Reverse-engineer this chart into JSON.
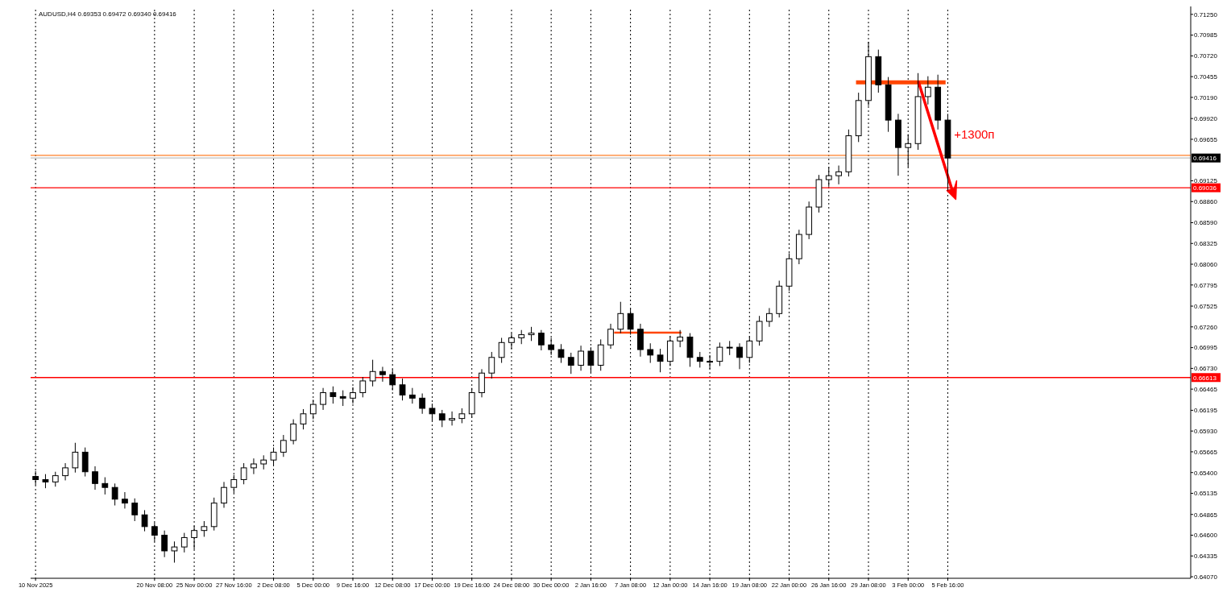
{
  "chart_data": {
    "type": "candlestick",
    "title": "AUDUSD,H4  0.69353 0.69472 0.69340 0.69416",
    "categories": [
      "10 Nov 2025",
      null,
      null,
      null,
      null,
      null,
      null,
      null,
      null,
      null,
      null,
      null,
      "20 Nov 08:00",
      null,
      null,
      null,
      "25 Nov 00:00",
      null,
      null,
      null,
      "27 Nov 16:00",
      null,
      null,
      null,
      "2 Dec 08:00",
      null,
      null,
      null,
      "5 Dec 00:00",
      null,
      null,
      null,
      "9 Dec 16:00",
      null,
      null,
      null,
      "12 Dec 08:00",
      null,
      null,
      null,
      "17 Dec 00:00",
      null,
      null,
      null,
      "19 Dec 16:00",
      null,
      null,
      null,
      "24 Dec 08:00",
      null,
      null,
      null,
      "30 Dec 00:00",
      null,
      null,
      null,
      "2 Jan 16:00",
      null,
      null,
      null,
      "7 Jan 08:00",
      null,
      null,
      null,
      "12 Jan 00:00",
      null,
      null,
      null,
      "14 Jan 16:00",
      null,
      null,
      null,
      "19 Jan 08:00",
      null,
      null,
      null,
      "22 Jan 00:00",
      null,
      null,
      null,
      "26 Jan 16:00",
      null,
      null,
      null,
      "29 Jan 08:00",
      null,
      null,
      null,
      "3 Feb 00:00",
      null,
      null,
      null,
      "5 Feb 16:00",
      null,
      null,
      null,
      null,
      null,
      null,
      null,
      null,
      null,
      null,
      null,
      null,
      null,
      null,
      null,
      null,
      null,
      null,
      null,
      null,
      null,
      null,
      null,
      null
    ],
    "ohlc": [
      [
        0.6535,
        0.6542,
        0.6524,
        0.6531
      ],
      [
        0.6531,
        0.6538,
        0.652,
        0.6528
      ],
      [
        0.6528,
        0.6541,
        0.6522,
        0.6536
      ],
      [
        0.6536,
        0.6552,
        0.653,
        0.6546
      ],
      [
        0.6546,
        0.6578,
        0.654,
        0.6566
      ],
      [
        0.6566,
        0.6572,
        0.6535,
        0.6541
      ],
      [
        0.6541,
        0.6548,
        0.6518,
        0.6526
      ],
      [
        0.6526,
        0.6534,
        0.6512,
        0.6521
      ],
      [
        0.6521,
        0.6526,
        0.6498,
        0.6506
      ],
      [
        0.6506,
        0.6515,
        0.6494,
        0.6501
      ],
      [
        0.6501,
        0.6507,
        0.6478,
        0.6486
      ],
      [
        0.6486,
        0.6492,
        0.6465,
        0.6471
      ],
      [
        0.6471,
        0.6476,
        0.6452,
        0.646
      ],
      [
        0.646,
        0.6466,
        0.6432,
        0.644
      ],
      [
        0.644,
        0.6452,
        0.6425,
        0.6445
      ],
      [
        0.6445,
        0.6463,
        0.6438,
        0.6457
      ],
      [
        0.6457,
        0.6472,
        0.6442,
        0.6466
      ],
      [
        0.6466,
        0.6478,
        0.6458,
        0.6471
      ],
      [
        0.6471,
        0.6508,
        0.6466,
        0.6501
      ],
      [
        0.6501,
        0.6528,
        0.6495,
        0.6521
      ],
      [
        0.6521,
        0.6537,
        0.6514,
        0.6531
      ],
      [
        0.6531,
        0.6552,
        0.6525,
        0.6546
      ],
      [
        0.6546,
        0.6558,
        0.6538,
        0.6551
      ],
      [
        0.6551,
        0.6562,
        0.6544,
        0.6556
      ],
      [
        0.6556,
        0.6572,
        0.6549,
        0.6566
      ],
      [
        0.6566,
        0.6588,
        0.656,
        0.6581
      ],
      [
        0.6581,
        0.6608,
        0.6576,
        0.6602
      ],
      [
        0.6602,
        0.6621,
        0.6595,
        0.6615
      ],
      [
        0.6615,
        0.6633,
        0.6608,
        0.6627
      ],
      [
        0.6627,
        0.6648,
        0.662,
        0.6642
      ],
      [
        0.6642,
        0.665,
        0.6628,
        0.6637
      ],
      [
        0.6637,
        0.6645,
        0.6625,
        0.6635
      ],
      [
        0.6635,
        0.6649,
        0.6628,
        0.6642
      ],
      [
        0.6642,
        0.6662,
        0.6636,
        0.6657
      ],
      [
        0.6657,
        0.6684,
        0.665,
        0.6669
      ],
      [
        0.6669,
        0.6675,
        0.6656,
        0.6665
      ],
      [
        0.6665,
        0.6672,
        0.6645,
        0.6652
      ],
      [
        0.6652,
        0.666,
        0.6632,
        0.6639
      ],
      [
        0.6639,
        0.6648,
        0.6628,
        0.6635
      ],
      [
        0.6635,
        0.6641,
        0.6615,
        0.6622
      ],
      [
        0.6622,
        0.6628,
        0.6606,
        0.6615
      ],
      [
        0.6615,
        0.662,
        0.6598,
        0.6607
      ],
      [
        0.6607,
        0.6618,
        0.66,
        0.6609
      ],
      [
        0.6609,
        0.6622,
        0.6603,
        0.6615
      ],
      [
        0.6615,
        0.6648,
        0.661,
        0.6642
      ],
      [
        0.6642,
        0.6672,
        0.6636,
        0.6667
      ],
      [
        0.6667,
        0.6694,
        0.666,
        0.6687
      ],
      [
        0.6687,
        0.6712,
        0.668,
        0.6706
      ],
      [
        0.6706,
        0.6718,
        0.6698,
        0.6712
      ],
      [
        0.6712,
        0.6722,
        0.6704,
        0.6716
      ],
      [
        0.6716,
        0.6726,
        0.6708,
        0.6718
      ],
      [
        0.6718,
        0.6722,
        0.6696,
        0.6703
      ],
      [
        0.6703,
        0.6712,
        0.669,
        0.6697
      ],
      [
        0.6697,
        0.6704,
        0.668,
        0.6687
      ],
      [
        0.6687,
        0.6693,
        0.6666,
        0.6677
      ],
      [
        0.6677,
        0.6702,
        0.667,
        0.6695
      ],
      [
        0.6695,
        0.67,
        0.6668,
        0.6677
      ],
      [
        0.6677,
        0.671,
        0.667,
        0.6703
      ],
      [
        0.6703,
        0.673,
        0.6698,
        0.6723
      ],
      [
        0.6723,
        0.6758,
        0.6718,
        0.6743
      ],
      [
        0.6743,
        0.675,
        0.6716,
        0.6723
      ],
      [
        0.6723,
        0.673,
        0.6688,
        0.6697
      ],
      [
        0.6697,
        0.6705,
        0.668,
        0.669
      ],
      [
        0.669,
        0.6698,
        0.6668,
        0.6682
      ],
      [
        0.6682,
        0.6714,
        0.6676,
        0.6708
      ],
      [
        0.6708,
        0.6722,
        0.67,
        0.6713
      ],
      [
        0.6713,
        0.6718,
        0.6675,
        0.6687
      ],
      [
        0.6687,
        0.6694,
        0.6674,
        0.6682
      ],
      [
        0.6682,
        0.669,
        0.6672,
        0.6682
      ],
      [
        0.6682,
        0.6706,
        0.6676,
        0.67
      ],
      [
        0.67,
        0.6708,
        0.669,
        0.67
      ],
      [
        0.67,
        0.6705,
        0.6672,
        0.6687
      ],
      [
        0.6687,
        0.6714,
        0.668,
        0.6708
      ],
      [
        0.6708,
        0.674,
        0.6702,
        0.6733
      ],
      [
        0.6733,
        0.675,
        0.6726,
        0.6743
      ],
      [
        0.6743,
        0.6785,
        0.6738,
        0.6778
      ],
      [
        0.6778,
        0.682,
        0.6772,
        0.6813
      ],
      [
        0.6813,
        0.685,
        0.6806,
        0.6844
      ],
      [
        0.6844,
        0.6886,
        0.6838,
        0.6879
      ],
      [
        0.6879,
        0.692,
        0.6872,
        0.6914
      ],
      [
        0.6914,
        0.693,
        0.6905,
        0.6919
      ],
      [
        0.6919,
        0.6932,
        0.6908,
        0.6924
      ],
      [
        0.6924,
        0.6978,
        0.6918,
        0.697
      ],
      [
        0.697,
        0.7025,
        0.6962,
        0.7015
      ],
      [
        0.7015,
        0.709,
        0.7008,
        0.7071
      ],
      [
        0.7071,
        0.708,
        0.7025,
        0.7035
      ],
      [
        0.7035,
        0.7045,
        0.6975,
        0.699
      ],
      [
        0.699,
        0.6998,
        0.6919,
        0.6955
      ],
      [
        0.6955,
        0.6972,
        0.693,
        0.696
      ],
      [
        0.696,
        0.705,
        0.6952,
        0.702
      ],
      [
        0.702,
        0.7046,
        0.701,
        0.7032
      ],
      [
        0.7032,
        0.7048,
        0.6978,
        0.699
      ],
      [
        0.699,
        0.6998,
        0.69,
        0.69416
      ],
      null,
      null,
      null,
      null,
      null,
      null,
      null,
      null,
      null,
      null,
      null,
      null,
      null,
      null,
      null,
      null,
      null,
      null,
      null,
      null,
      null,
      null,
      null,
      null
    ],
    "ylim": [
      0.6405,
      0.7131
    ],
    "yticks": [
      {
        "value": 0.6407,
        "label": "0.64070"
      },
      {
        "value": 0.64335,
        "label": "0.64335"
      },
      {
        "value": 0.646,
        "label": "0.64600"
      },
      {
        "value": 0.64865,
        "label": "0.64865"
      },
      {
        "value": 0.65135,
        "label": "0.65135"
      },
      {
        "value": 0.654,
        "label": "0.65400"
      },
      {
        "value": 0.65665,
        "label": "0.65665"
      },
      {
        "value": 0.6593,
        "label": "0.65930"
      },
      {
        "value": 0.66195,
        "label": "0.66195"
      },
      {
        "value": 0.66465,
        "label": "0.66465"
      },
      {
        "value": 0.6673,
        "label": "0.66730"
      },
      {
        "value": 0.66995,
        "label": "0.66995"
      },
      {
        "value": 0.6726,
        "label": "0.67260"
      },
      {
        "value": 0.67525,
        "label": "0.67525"
      },
      {
        "value": 0.67795,
        "label": "0.67795"
      },
      {
        "value": 0.6806,
        "label": "0.68060"
      },
      {
        "value": 0.68325,
        "label": "0.68325"
      },
      {
        "value": 0.6859,
        "label": "0.68590"
      },
      {
        "value": 0.6886,
        "label": "0.68860"
      },
      {
        "value": 0.69125,
        "label": "0.69125"
      },
      {
        "value": 0.69655,
        "label": "0.69655"
      },
      {
        "value": 0.6992,
        "label": "0.69920"
      },
      {
        "value": 0.7019,
        "label": "0.70190"
      },
      {
        "value": 0.70455,
        "label": "0.70455"
      },
      {
        "value": 0.7072,
        "label": "0.70720"
      },
      {
        "value": 0.70985,
        "label": "0.70985"
      },
      {
        "value": 0.7125,
        "label": "0.71250"
      }
    ],
    "ref_lines": [
      {
        "axis": "y",
        "value": 0.6945,
        "label": null,
        "color": "#ff7f27"
      },
      {
        "axis": "y",
        "value": 0.69416,
        "label": "0.69416",
        "color": "#c0c0c0"
      },
      {
        "axis": "y",
        "value": 0.69036,
        "label": "0.69036",
        "color": "#ff0000"
      },
      {
        "axis": "y",
        "value": 0.66613,
        "label": "0.66613",
        "color": "#ff0000"
      }
    ],
    "annotations": [
      "+1300п"
    ],
    "grid": "x"
  }
}
